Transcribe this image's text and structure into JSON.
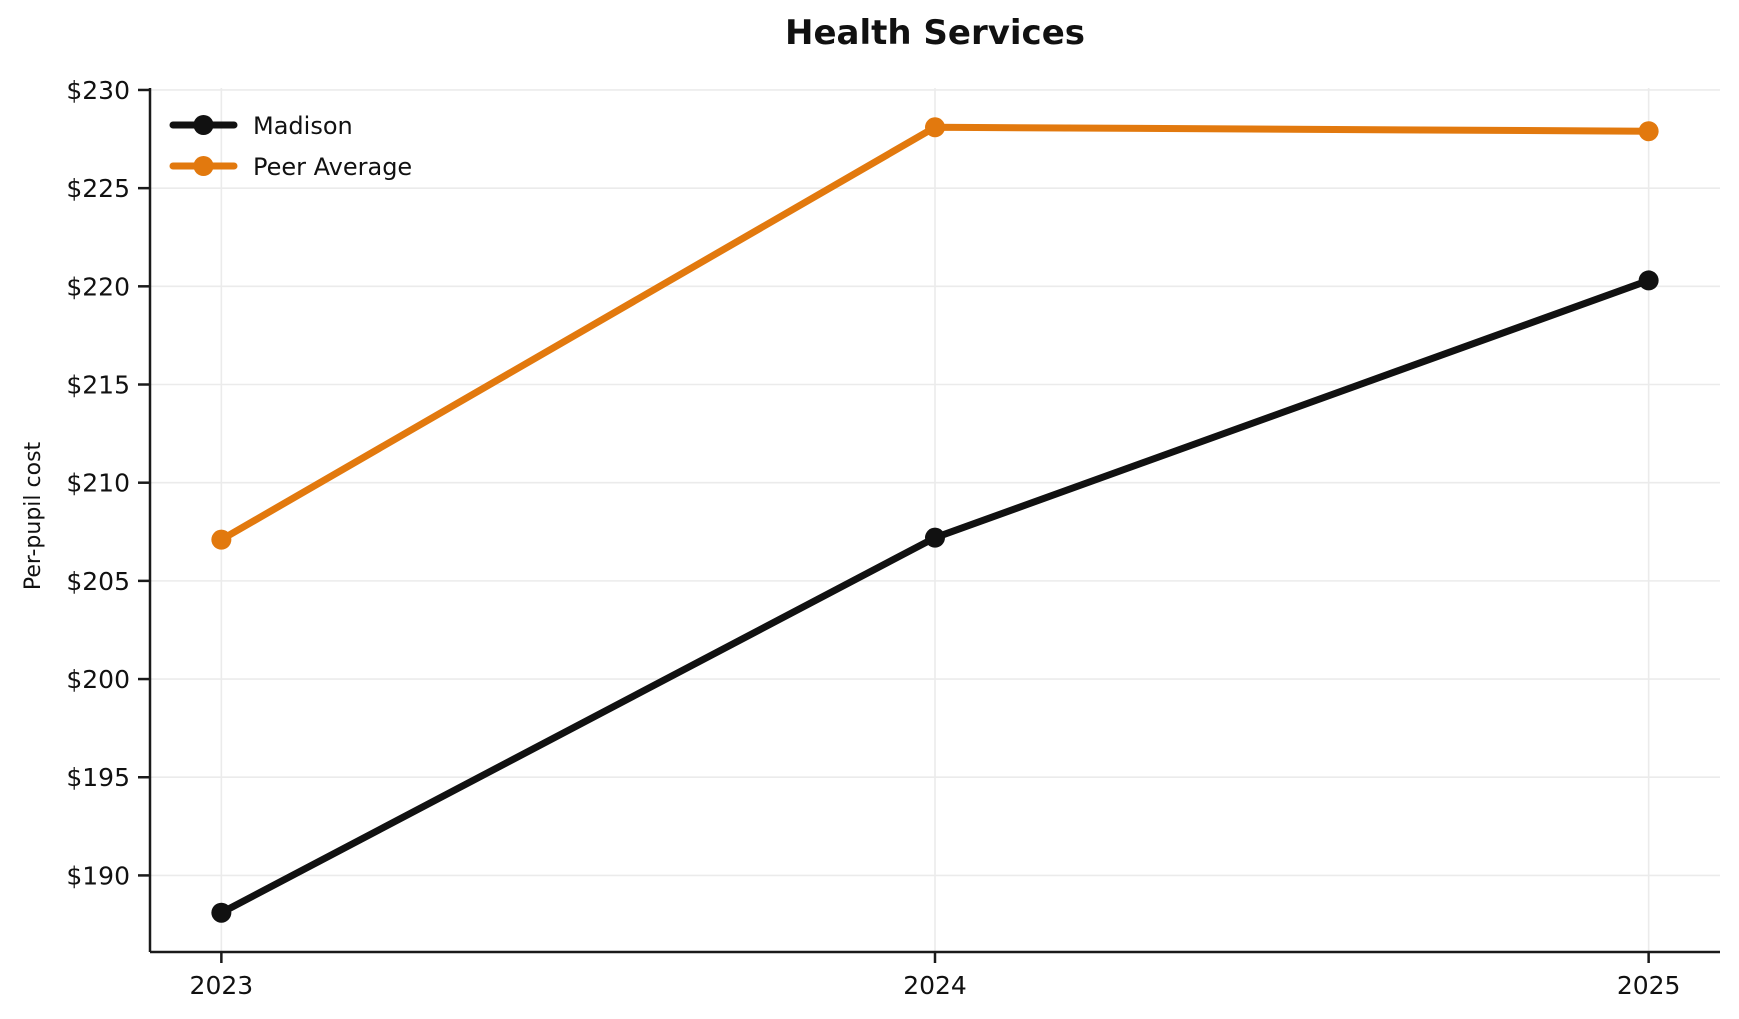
{
  "chart_data": {
    "type": "line",
    "title": "Health Services",
    "xlabel": "",
    "ylabel": "Per-pupil cost",
    "x": [
      2023,
      2024,
      2025
    ],
    "x_tick_labels": [
      "2023",
      "2024",
      "2025"
    ],
    "y_ticks": [
      190,
      195,
      200,
      205,
      210,
      215,
      220,
      225,
      230
    ],
    "y_tick_labels": [
      "$190",
      "$195",
      "$200",
      "$205",
      "$210",
      "$215",
      "$220",
      "$225",
      "$230"
    ],
    "xlim": [
      2022.9,
      2025.1
    ],
    "ylim": [
      186.1,
      230.1
    ],
    "grid": true,
    "legend_position": "upper-left",
    "series": [
      {
        "name": "Madison",
        "color": "#111111",
        "values": [
          188.1,
          207.2,
          220.3
        ]
      },
      {
        "name": "Peer Average",
        "color": "#E2790E",
        "values": [
          207.1,
          228.1,
          227.9
        ]
      }
    ],
    "colors": {
      "background": "#ffffff",
      "grid": "#ebebeb",
      "axis": "#1a1a1a",
      "text": "#111111"
    }
  }
}
